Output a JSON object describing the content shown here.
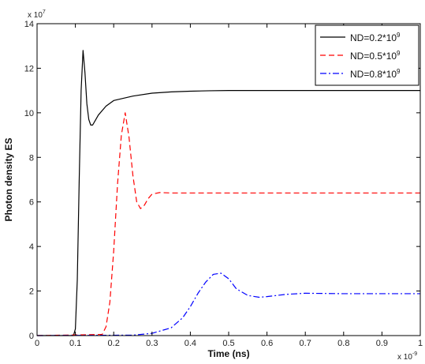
{
  "chart_data": {
    "type": "line",
    "xlabel": "Time (ns)",
    "ylabel": "Photon density ES",
    "xlim": [
      0,
      1
    ],
    "ylim": [
      0,
      14
    ],
    "x_ticks": [
      0,
      0.1,
      0.2,
      0.3,
      0.4,
      0.5,
      0.6,
      0.7,
      0.8,
      0.9,
      1
    ],
    "x_tick_labels": [
      "0",
      "0.1",
      "0.2",
      "0.3",
      "0.4",
      "0.5",
      "0.6",
      "0.7",
      "0.8",
      "0.9",
      "1"
    ],
    "y_ticks": [
      0,
      2,
      4,
      6,
      8,
      10,
      12,
      14
    ],
    "y_tick_labels": [
      "0",
      "2",
      "4",
      "6",
      "8",
      "10",
      "12",
      "14"
    ],
    "x_exponent": {
      "base": "x 10",
      "power": "-9"
    },
    "y_exponent": {
      "base": "x 10",
      "power": "7"
    },
    "grid": false,
    "legend_position": "top-right",
    "series": [
      {
        "name": "ND=0.2*10",
        "name_sup": "9",
        "color": "#000000",
        "style": "solid",
        "x": [
          0,
          0.095,
          0.1,
          0.105,
          0.11,
          0.115,
          0.12,
          0.125,
          0.13,
          0.135,
          0.14,
          0.145,
          0.15,
          0.16,
          0.18,
          0.2,
          0.25,
          0.3,
          0.35,
          0.4,
          0.45,
          0.5,
          0.6,
          0.7,
          0.8,
          0.9,
          1.0
        ],
        "y": [
          0,
          0,
          0.3,
          2.5,
          7.0,
          11.0,
          12.8,
          11.8,
          10.4,
          9.7,
          9.45,
          9.45,
          9.6,
          9.9,
          10.3,
          10.55,
          10.75,
          10.88,
          10.94,
          10.97,
          10.99,
          11.0,
          11.0,
          11.0,
          11.0,
          11.0,
          11.0
        ]
      },
      {
        "name": "ND=0.5*10",
        "name_sup": "9",
        "color": "#ff0000",
        "style": "dashed",
        "x": [
          0,
          0.17,
          0.18,
          0.19,
          0.2,
          0.21,
          0.22,
          0.23,
          0.24,
          0.25,
          0.26,
          0.27,
          0.28,
          0.29,
          0.3,
          0.32,
          0.35,
          0.4,
          0.5,
          0.6,
          0.7,
          0.8,
          0.9,
          1.0
        ],
        "y": [
          0,
          0.05,
          0.4,
          1.5,
          3.8,
          6.8,
          9.0,
          10.0,
          8.9,
          7.2,
          6.0,
          5.7,
          5.85,
          6.15,
          6.35,
          6.42,
          6.4,
          6.4,
          6.4,
          6.4,
          6.4,
          6.4,
          6.4,
          6.4
        ]
      },
      {
        "name": "ND=0.8*10",
        "name_sup": "9",
        "color": "#0000ff",
        "style": "dashdot",
        "x": [
          0,
          0.25,
          0.3,
          0.35,
          0.38,
          0.4,
          0.42,
          0.44,
          0.46,
          0.48,
          0.5,
          0.52,
          0.55,
          0.58,
          0.6,
          0.65,
          0.7,
          0.8,
          0.9,
          1.0
        ],
        "y": [
          0,
          0.02,
          0.1,
          0.35,
          0.8,
          1.3,
          1.9,
          2.4,
          2.75,
          2.8,
          2.55,
          2.1,
          1.8,
          1.72,
          1.75,
          1.85,
          1.9,
          1.88,
          1.88,
          1.88
        ]
      }
    ]
  }
}
